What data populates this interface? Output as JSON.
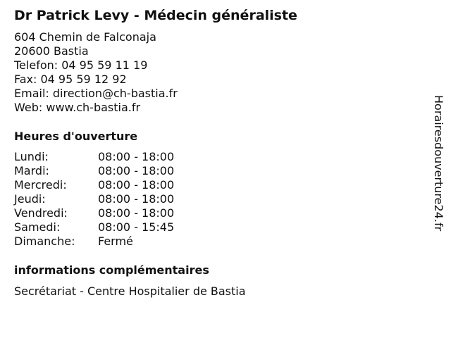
{
  "title": "Dr Patrick Levy - Médecin généraliste",
  "contact": {
    "street": "604 Chemin de Falconaja",
    "city": "20600 Bastia",
    "phone": "Telefon: 04 95 59 11 19",
    "fax": "Fax: 04 95 59 12 92",
    "email": "Email: direction@ch-bastia.fr",
    "web": "Web: www.ch-bastia.fr"
  },
  "hours_heading": "Heures d'ouverture",
  "hours": [
    {
      "day": "Lundi:",
      "time": "08:00 - 18:00"
    },
    {
      "day": "Mardi:",
      "time": "08:00 - 18:00"
    },
    {
      "day": "Mercredi:",
      "time": "08:00 - 18:00"
    },
    {
      "day": "Jeudi:",
      "time": "08:00 - 18:00"
    },
    {
      "day": "Vendredi:",
      "time": "08:00 - 18:00"
    },
    {
      "day": "Samedi:",
      "time": "08:00 - 15:45"
    },
    {
      "day": "Dimanche:",
      "time": "Fermé"
    }
  ],
  "info_heading": "informations complémentaires",
  "info_text": "Secrétariat - Centre Hospitalier de Bastia",
  "side_label": "Horairesdouverture24.fr"
}
